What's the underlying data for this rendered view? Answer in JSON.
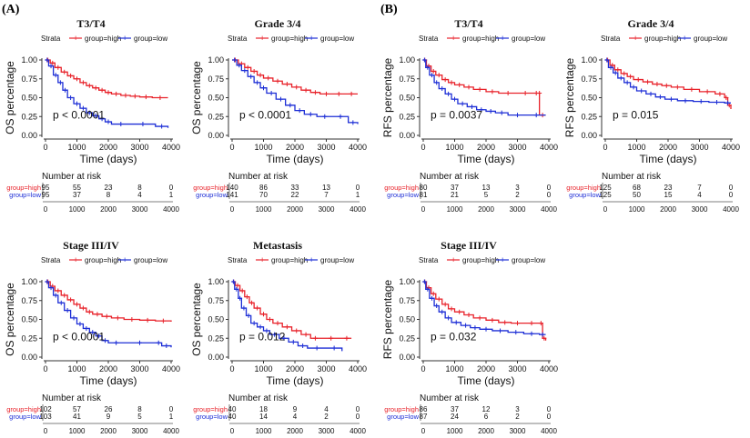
{
  "section_labels": [
    "(A)",
    "(B)"
  ],
  "legend": {
    "strata_label": "Strata",
    "high_label": "group=high",
    "low_label": "group=low"
  },
  "risk_table": {
    "title": "Number at risk",
    "high_row_label": "group=high",
    "low_row_label": "group=low"
  },
  "colors": {
    "high": "#e8222a",
    "low": "#1d2ed6",
    "axis": "#333333"
  },
  "chart_data": [
    {
      "type": "line",
      "title": "T3/T4",
      "xlabel": "Time (days)",
      "ylabel": "OS percentage",
      "xlim": [
        0,
        4000
      ],
      "ylim": [
        0,
        1
      ],
      "xticks": [
        "0",
        "1000",
        "2000",
        "3000",
        "4000"
      ],
      "yticks": [
        "0.00",
        "0.25",
        "0.50",
        "0.75",
        "1.00"
      ],
      "pvalue": "p < 0.0001",
      "series": [
        {
          "name": "group=high",
          "x": [
            0,
            150,
            300,
            500,
            700,
            900,
            1100,
            1300,
            1500,
            1700,
            1900,
            2100,
            2400,
            2700,
            3000,
            3400,
            3900
          ],
          "y": [
            1.0,
            0.96,
            0.9,
            0.84,
            0.79,
            0.75,
            0.7,
            0.66,
            0.63,
            0.6,
            0.57,
            0.55,
            0.53,
            0.52,
            0.51,
            0.5,
            0.5
          ]
        },
        {
          "name": "group=low",
          "x": [
            0,
            100,
            250,
            400,
            550,
            700,
            900,
            1100,
            1300,
            1500,
            1700,
            1900,
            2100,
            2700,
            3500,
            3900
          ],
          "y": [
            1.0,
            0.92,
            0.8,
            0.7,
            0.6,
            0.5,
            0.42,
            0.36,
            0.3,
            0.26,
            0.22,
            0.18,
            0.15,
            0.15,
            0.12,
            0.1
          ]
        }
      ],
      "risk_high": [
        "95",
        "55",
        "23",
        "8",
        "0"
      ],
      "risk_low": [
        "95",
        "37",
        "8",
        "4",
        "1"
      ]
    },
    {
      "type": "line",
      "title": "Grade 3/4",
      "xlabel": "Time (days)",
      "ylabel": "OS percentage",
      "xlim": [
        0,
        4000
      ],
      "ylim": [
        0,
        1
      ],
      "xticks": [
        "0",
        "1000",
        "2000",
        "3000",
        "4000"
      ],
      "yticks": [
        "0.00",
        "0.25",
        "0.50",
        "0.75",
        "1.00"
      ],
      "pvalue": "p < 0.0001",
      "series": [
        {
          "name": "group=high",
          "x": [
            0,
            200,
            400,
            600,
            800,
            1000,
            1300,
            1600,
            1900,
            2200,
            2500,
            2800,
            3200,
            3600,
            4000
          ],
          "y": [
            1.0,
            0.95,
            0.9,
            0.85,
            0.8,
            0.76,
            0.72,
            0.68,
            0.64,
            0.6,
            0.57,
            0.55,
            0.55,
            0.55,
            0.55
          ]
        },
        {
          "name": "group=low",
          "x": [
            0,
            150,
            300,
            500,
            700,
            900,
            1100,
            1400,
            1700,
            2000,
            2300,
            2700,
            3200,
            3700,
            4000
          ],
          "y": [
            1.0,
            0.93,
            0.86,
            0.78,
            0.7,
            0.63,
            0.56,
            0.48,
            0.4,
            0.33,
            0.28,
            0.25,
            0.25,
            0.17,
            0.15
          ]
        }
      ],
      "risk_high": [
        "140",
        "86",
        "33",
        "13",
        "0"
      ],
      "risk_low": [
        "141",
        "70",
        "22",
        "7",
        "1"
      ]
    },
    {
      "type": "line",
      "title": "T3/T4",
      "xlabel": "Time (days)",
      "ylabel": "RFS percentage",
      "xlim": [
        0,
        4000
      ],
      "ylim": [
        0,
        1
      ],
      "xticks": [
        "0",
        "1000",
        "2000",
        "3000",
        "4000"
      ],
      "yticks": [
        "0.00",
        "0.25",
        "0.50",
        "0.75",
        "1.00"
      ],
      "pvalue": "p = 0.0037",
      "series": [
        {
          "name": "group=high",
          "x": [
            0,
            100,
            250,
            400,
            600,
            800,
            1000,
            1300,
            1600,
            2000,
            2400,
            3000,
            3500,
            3700,
            3700,
            3900
          ],
          "y": [
            1.0,
            0.92,
            0.85,
            0.8,
            0.74,
            0.7,
            0.67,
            0.64,
            0.61,
            0.58,
            0.56,
            0.56,
            0.56,
            0.56,
            0.27,
            0.27
          ]
        },
        {
          "name": "group=low",
          "x": [
            0,
            80,
            200,
            350,
            500,
            700,
            900,
            1100,
            1400,
            1700,
            2000,
            2300,
            2700,
            3300,
            3900
          ],
          "y": [
            1.0,
            0.9,
            0.8,
            0.7,
            0.62,
            0.55,
            0.48,
            0.42,
            0.38,
            0.34,
            0.32,
            0.3,
            0.27,
            0.27,
            0.27
          ]
        }
      ],
      "risk_high": [
        "80",
        "37",
        "13",
        "3",
        "0"
      ],
      "risk_low": [
        "81",
        "21",
        "5",
        "2",
        "0"
      ]
    },
    {
      "type": "line",
      "title": "Grade 3/4",
      "xlabel": "Time (days)",
      "ylabel": "RFS percentage",
      "xlim": [
        0,
        4000
      ],
      "ylim": [
        0,
        1
      ],
      "xticks": [
        "0",
        "1000",
        "2000",
        "3000",
        "4000"
      ],
      "yticks": [
        "0.00",
        "0.25",
        "0.50",
        "0.75",
        "1.00"
      ],
      "pvalue": "p = 0.015",
      "series": [
        {
          "name": "group=high",
          "x": [
            0,
            150,
            300,
            500,
            700,
            900,
            1200,
            1500,
            1800,
            2100,
            2500,
            3000,
            3500,
            3800,
            3900,
            4000
          ],
          "y": [
            1.0,
            0.93,
            0.87,
            0.82,
            0.78,
            0.74,
            0.71,
            0.68,
            0.66,
            0.64,
            0.61,
            0.58,
            0.55,
            0.5,
            0.4,
            0.35
          ]
        },
        {
          "name": "group=low",
          "x": [
            0,
            100,
            250,
            400,
            600,
            800,
            1000,
            1300,
            1600,
            1900,
            2300,
            2800,
            3300,
            3800,
            4000
          ],
          "y": [
            1.0,
            0.9,
            0.83,
            0.76,
            0.7,
            0.64,
            0.59,
            0.55,
            0.51,
            0.48,
            0.46,
            0.45,
            0.44,
            0.43,
            0.43
          ]
        }
      ],
      "risk_high": [
        "125",
        "68",
        "23",
        "7",
        "0"
      ],
      "risk_low": [
        "125",
        "50",
        "15",
        "4",
        "0"
      ]
    },
    {
      "type": "line",
      "title": "Stage III/IV",
      "xlabel": "Time (days)",
      "ylabel": "OS percentage",
      "xlim": [
        0,
        4000
      ],
      "ylim": [
        0,
        1
      ],
      "xticks": [
        "0",
        "1000",
        "2000",
        "3000",
        "4000"
      ],
      "yticks": [
        "0.00",
        "0.25",
        "0.50",
        "0.75",
        "1.00"
      ],
      "pvalue": "p < 0.0001",
      "series": [
        {
          "name": "group=high",
          "x": [
            0,
            150,
            300,
            500,
            700,
            900,
            1100,
            1300,
            1500,
            1800,
            2100,
            2500,
            3000,
            3500,
            4000
          ],
          "y": [
            1.0,
            0.94,
            0.88,
            0.82,
            0.76,
            0.7,
            0.65,
            0.6,
            0.57,
            0.54,
            0.52,
            0.5,
            0.49,
            0.48,
            0.47
          ]
        },
        {
          "name": "group=low",
          "x": [
            0,
            100,
            250,
            400,
            600,
            800,
            1000,
            1200,
            1400,
            1600,
            1800,
            2000,
            2500,
            3500,
            3700,
            4000
          ],
          "y": [
            1.0,
            0.92,
            0.82,
            0.72,
            0.62,
            0.52,
            0.44,
            0.38,
            0.33,
            0.28,
            0.22,
            0.19,
            0.19,
            0.19,
            0.15,
            0.13
          ]
        }
      ],
      "risk_high": [
        "102",
        "57",
        "26",
        "8",
        "0"
      ],
      "risk_low": [
        "103",
        "41",
        "9",
        "5",
        "1"
      ]
    },
    {
      "type": "line",
      "title": "Metastasis",
      "xlabel": "Time (days)",
      "ylabel": "OS percentage",
      "xlim": [
        0,
        4000
      ],
      "ylim": [
        0,
        1
      ],
      "xticks": [
        "0",
        "1000",
        "2000",
        "3000",
        "4000"
      ],
      "yticks": [
        "0.00",
        "0.25",
        "0.50",
        "0.75",
        "1.00"
      ],
      "pvalue": "p = 0.012",
      "series": [
        {
          "name": "group=high",
          "x": [
            0,
            100,
            250,
            400,
            550,
            700,
            900,
            1100,
            1300,
            1600,
            1900,
            2200,
            2500,
            2800,
            3500,
            3800
          ],
          "y": [
            1.0,
            0.95,
            0.88,
            0.8,
            0.72,
            0.65,
            0.57,
            0.5,
            0.45,
            0.4,
            0.35,
            0.3,
            0.25,
            0.25,
            0.25,
            0.25
          ]
        },
        {
          "name": "group=low",
          "x": [
            0,
            80,
            200,
            300,
            450,
            600,
            800,
            1000,
            1200,
            1500,
            1800,
            2100,
            2400,
            3000,
            3500
          ],
          "y": [
            1.0,
            0.9,
            0.78,
            0.65,
            0.55,
            0.45,
            0.4,
            0.35,
            0.3,
            0.25,
            0.2,
            0.15,
            0.12,
            0.12,
            0.08
          ]
        }
      ],
      "risk_high": [
        "40",
        "18",
        "9",
        "4",
        "0"
      ],
      "risk_low": [
        "40",
        "14",
        "4",
        "2",
        "0"
      ]
    },
    {
      "type": "line",
      "title": "Stage III/IV",
      "xlabel": "Time (days)",
      "ylabel": "RFS percentage",
      "xlim": [
        0,
        4000
      ],
      "ylim": [
        0,
        1
      ],
      "xticks": [
        "0",
        "1000",
        "2000",
        "3000",
        "4000"
      ],
      "yticks": [
        "0.00",
        "0.25",
        "0.50",
        "0.75",
        "1.00"
      ],
      "pvalue": "p = 0.032",
      "series": [
        {
          "name": "group=high",
          "x": [
            0,
            100,
            250,
            400,
            600,
            800,
            1000,
            1300,
            1600,
            2000,
            2400,
            2800,
            3200,
            3700,
            3800,
            3900
          ],
          "y": [
            1.0,
            0.92,
            0.84,
            0.77,
            0.7,
            0.64,
            0.6,
            0.56,
            0.52,
            0.49,
            0.46,
            0.45,
            0.45,
            0.45,
            0.25,
            0.22
          ]
        },
        {
          "name": "group=low",
          "x": [
            0,
            80,
            200,
            350,
            500,
            700,
            900,
            1200,
            1500,
            1800,
            2200,
            2700,
            3200,
            3700,
            3900
          ],
          "y": [
            1.0,
            0.9,
            0.78,
            0.68,
            0.6,
            0.52,
            0.46,
            0.42,
            0.39,
            0.37,
            0.35,
            0.33,
            0.31,
            0.3,
            0.3
          ]
        }
      ],
      "risk_high": [
        "86",
        "37",
        "12",
        "3",
        "0"
      ],
      "risk_low": [
        "87",
        "24",
        "6",
        "2",
        "0"
      ]
    }
  ]
}
